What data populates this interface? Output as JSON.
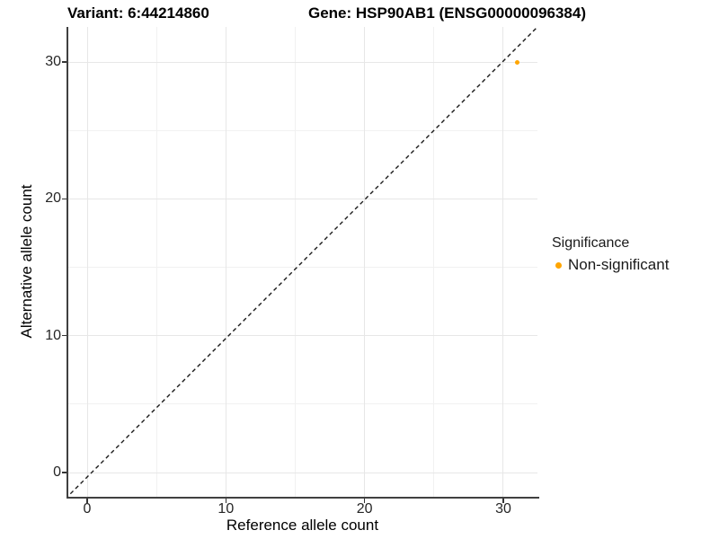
{
  "window": {
    "background": "#ffffff"
  },
  "chart_data": {
    "type": "scatter",
    "title_left": "Variant: 6:44214860",
    "title_right": "Gene: HSP90AB1 (ENSG00000096384)",
    "xlabel": "Reference allele count",
    "ylabel": "Alternative allele count",
    "x_ticks": [
      0,
      10,
      20,
      30
    ],
    "y_ticks": [
      0,
      10,
      20,
      30
    ],
    "x_minor_ticks": [
      5,
      15,
      25
    ],
    "y_minor_ticks": [
      5,
      15,
      25
    ],
    "xlim": [
      -1.5,
      32.5
    ],
    "ylim": [
      -1.8,
      32.6
    ],
    "grid": true,
    "series": [
      {
        "name": "Non-significant",
        "color": "#FFA500",
        "marker": "circle",
        "points": [
          {
            "x": 31,
            "y": 30
          }
        ]
      }
    ],
    "reference_line": {
      "equation": "y = x",
      "style": "dashed",
      "color": "#1a1a1a"
    },
    "legend": {
      "title": "Significance",
      "position": "right",
      "items": [
        {
          "label": "Non-significant",
          "color": "#FFA500"
        }
      ]
    },
    "colors": {
      "axis_line": "#404040",
      "tick": "#333333",
      "tick_label": "#262626",
      "grid_major": "#e7e7e7",
      "grid_minor": "#f1f1f1"
    }
  }
}
